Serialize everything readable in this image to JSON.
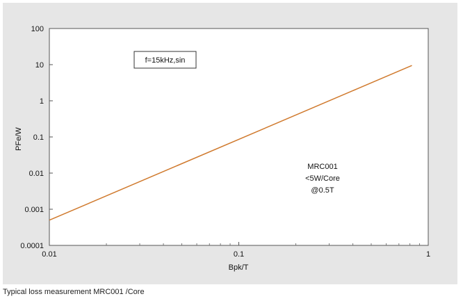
{
  "caption": "Typical loss measurement MRC001 /Core",
  "chart_data": {
    "type": "line",
    "x_scale": "log",
    "y_scale": "log",
    "xlabel": "Bpk/T",
    "ylabel": "PFe/W",
    "xlim": [
      0.01,
      1
    ],
    "ylim": [
      0.0001,
      100
    ],
    "x_ticks": [
      "0.01",
      "0.1",
      "1"
    ],
    "y_ticks": [
      "0.0001",
      "0.001",
      "0.01",
      "0.1",
      "1",
      "10",
      "100"
    ],
    "grid": false,
    "line_color": "#d07a2e",
    "series": [
      {
        "x": [
          0.01,
          0.82
        ],
        "y": [
          0.0005,
          9.5
        ]
      }
    ],
    "annotations": {
      "box_label": "f=15kHz,sin",
      "text_lines": [
        "MRC001",
        "<5W/Core",
        "@0.5T"
      ]
    }
  }
}
